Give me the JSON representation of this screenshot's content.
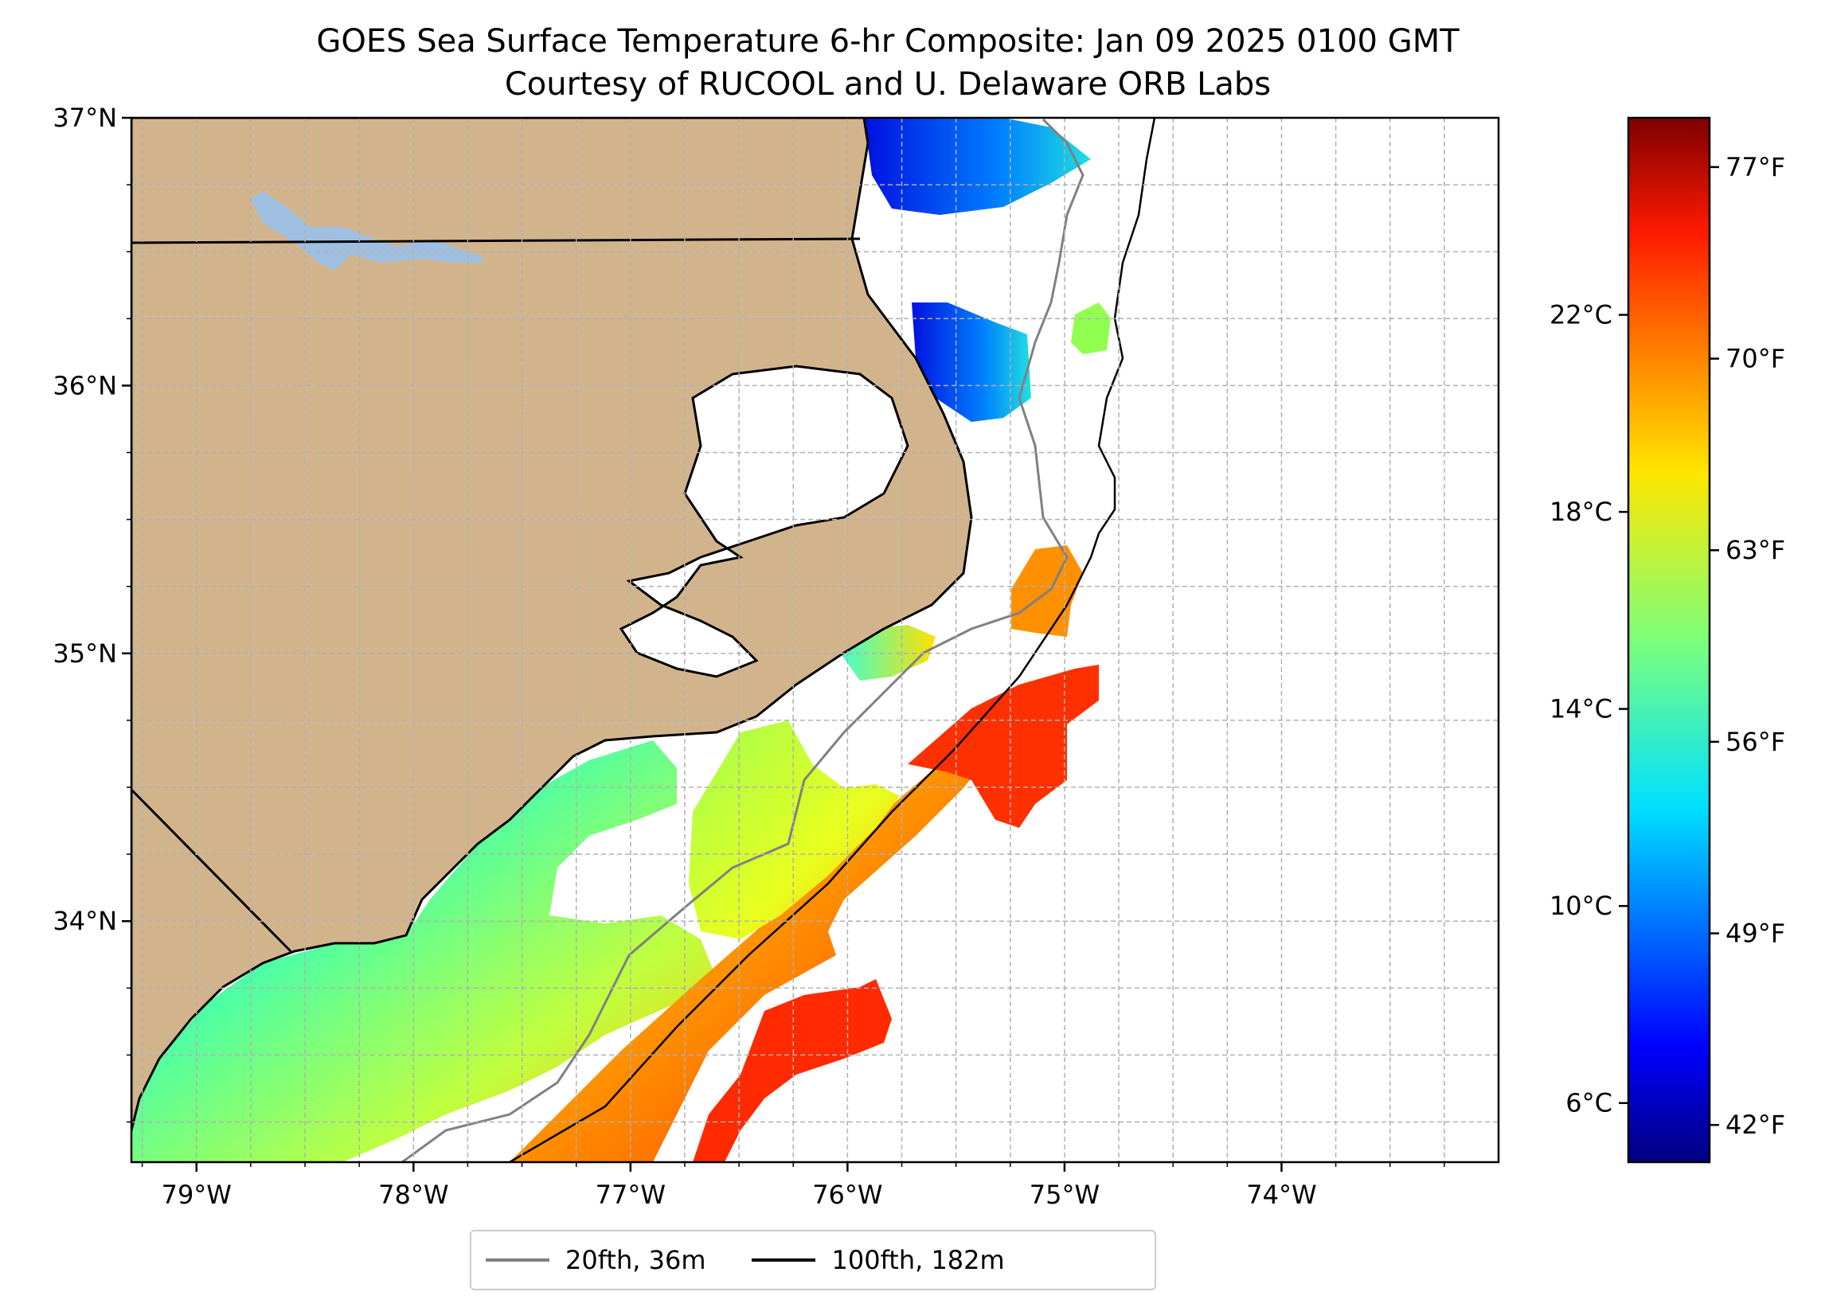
{
  "title": "GOES Sea Surface Temperature 6-hr Composite: Jan 09 2025 0100 GMT",
  "subtitle": "Courtesy of RUCOOL and U. Delaware ORB Labs",
  "map": {
    "lon_range": [
      -79.3,
      -73.0
    ],
    "lat_range": [
      33.1,
      37.0
    ],
    "lon_ticks": [
      "79°W",
      "78°W",
      "77°W",
      "76°W",
      "75°W",
      "74°W"
    ],
    "lon_tick_values": [
      -79,
      -78,
      -77,
      -76,
      -75,
      -74
    ],
    "lat_ticks": [
      "34°N",
      "35°N",
      "36°N",
      "37°N"
    ],
    "lat_tick_values": [
      34,
      35,
      36,
      37
    ],
    "grid": true,
    "land_color": "#d2b48c",
    "lake_color": "#9fbfe0",
    "colormap": "jet"
  },
  "colorbar": {
    "range_celsius": [
      4.8,
      26.0
    ],
    "celsius_ticks": [
      "6°C",
      "10°C",
      "14°C",
      "18°C",
      "22°C"
    ],
    "celsius_values": [
      6,
      10,
      14,
      18,
      22
    ],
    "fahrenheit_ticks": [
      "42°F",
      "49°F",
      "56°F",
      "63°F",
      "70°F",
      "77°F"
    ],
    "fahrenheit_values": [
      42,
      49,
      56,
      63,
      70,
      77
    ]
  },
  "legend": {
    "placement": "bottom-center",
    "items": [
      {
        "label": "20fth, 36m",
        "color": "#808080"
      },
      {
        "label": "100fth, 182m",
        "color": "#000000"
      }
    ]
  }
}
